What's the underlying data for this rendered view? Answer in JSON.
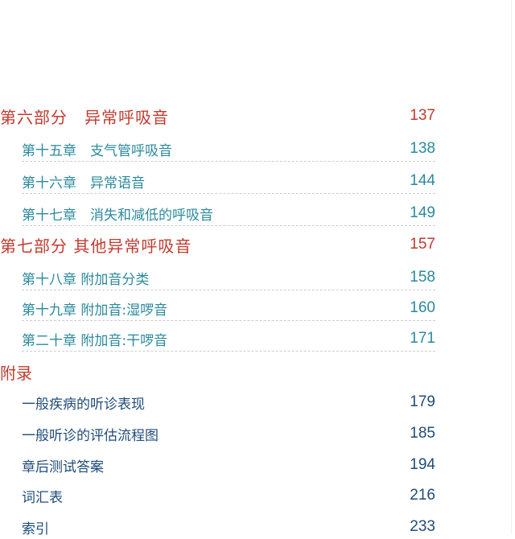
{
  "toc": {
    "parts": [
      {
        "title": "第六部分　异常呼吸音",
        "page": "137",
        "chapters": [
          {
            "title": "第十五章　支气管呼吸音",
            "page": "138"
          },
          {
            "title": "第十六章　异常语音",
            "page": "144"
          },
          {
            "title": "第十七章　消失和减低的呼吸音",
            "page": "149"
          }
        ]
      },
      {
        "title": "第七部分 其他异常呼吸音",
        "page": "157",
        "chapters": [
          {
            "title": "第十八章 附加音分类",
            "page": "158"
          },
          {
            "title": "第十九章 附加音:湿啰音",
            "page": "160"
          },
          {
            "title": "第二十章 附加音:干啰音",
            "page": "171"
          }
        ]
      }
    ],
    "appendix": {
      "title": "附录",
      "items": [
        {
          "title": "一般疾病的听诊表现",
          "page": "179"
        },
        {
          "title": "一般听诊的评估流程图",
          "page": "185"
        },
        {
          "title": "章后测试答案",
          "page": "194"
        },
        {
          "title": "词汇表",
          "page": "216"
        },
        {
          "title": "索引",
          "page": "233"
        }
      ]
    }
  },
  "colors": {
    "part": "#c23a2e",
    "chapter": "#2b8a9c",
    "appendix_item": "#1f4c78"
  }
}
